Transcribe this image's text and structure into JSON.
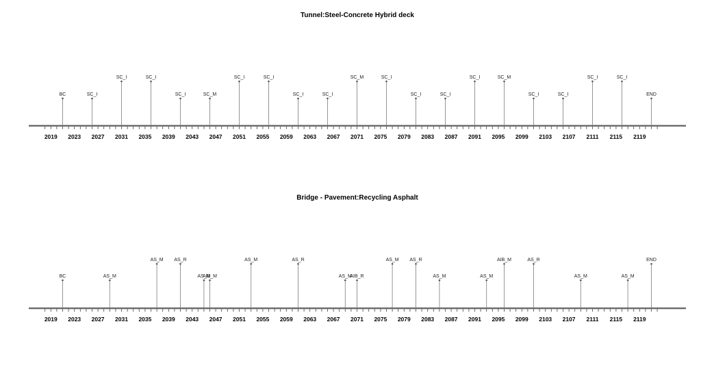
{
  "chart_data": [
    {
      "type": "timeline",
      "title": "Tunnel:Steel-Concrete Hybrid deck",
      "xlim": [
        2016,
        2122
      ],
      "tick_values": [
        2019,
        2023,
        2027,
        2031,
        2035,
        2039,
        2043,
        2047,
        2051,
        2055,
        2059,
        2063,
        2067,
        2071,
        2075,
        2079,
        2083,
        2087,
        2091,
        2095,
        2099,
        2103,
        2107,
        2111,
        2115,
        2119
      ],
      "events": [
        {
          "year": 2021,
          "label": "BC",
          "level": "low"
        },
        {
          "year": 2026,
          "label": "SC_I",
          "level": "low"
        },
        {
          "year": 2031,
          "label": "SC_I",
          "level": "high"
        },
        {
          "year": 2036,
          "label": "SC_I",
          "level": "high"
        },
        {
          "year": 2041,
          "label": "SC_I",
          "level": "low"
        },
        {
          "year": 2046,
          "label": "SC_M",
          "level": "low"
        },
        {
          "year": 2051,
          "label": "SC_I",
          "level": "high"
        },
        {
          "year": 2056,
          "label": "SC_I",
          "level": "high"
        },
        {
          "year": 2061,
          "label": "SC_I",
          "level": "low"
        },
        {
          "year": 2066,
          "label": "SC_I",
          "level": "low"
        },
        {
          "year": 2071,
          "label": "SC_M",
          "level": "high"
        },
        {
          "year": 2076,
          "label": "SC_I",
          "level": "high"
        },
        {
          "year": 2081,
          "label": "SC_I",
          "level": "low"
        },
        {
          "year": 2086,
          "label": "SC_I",
          "level": "low"
        },
        {
          "year": 2091,
          "label": "SC_I",
          "level": "high"
        },
        {
          "year": 2096,
          "label": "SC_M",
          "level": "high"
        },
        {
          "year": 2101,
          "label": "SC_I",
          "level": "low"
        },
        {
          "year": 2106,
          "label": "SC_I",
          "level": "low"
        },
        {
          "year": 2111,
          "label": "SC_I",
          "level": "high"
        },
        {
          "year": 2116,
          "label": "SC_I",
          "level": "high"
        },
        {
          "year": 2121,
          "label": "END",
          "level": "low"
        }
      ]
    },
    {
      "type": "timeline",
      "title": "Bridge - Pavement:Recycling Asphalt",
      "xlim": [
        2016,
        2122
      ],
      "tick_values": [
        2019,
        2023,
        2027,
        2031,
        2035,
        2039,
        2043,
        2047,
        2051,
        2055,
        2059,
        2063,
        2067,
        2071,
        2075,
        2079,
        2083,
        2087,
        2091,
        2095,
        2099,
        2103,
        2107,
        2111,
        2115,
        2119
      ],
      "events": [
        {
          "year": 2021,
          "label": "BC",
          "level": "low"
        },
        {
          "year": 2029,
          "label": "AS_M",
          "level": "low"
        },
        {
          "year": 2037,
          "label": "AS_M",
          "level": "high"
        },
        {
          "year": 2041,
          "label": "AS_R",
          "level": "high"
        },
        {
          "year": 2045,
          "label": "AS_M",
          "level": "low"
        },
        {
          "year": 2046,
          "label": "AIB_M",
          "level": "low"
        },
        {
          "year": 2053,
          "label": "AS_M",
          "level": "high"
        },
        {
          "year": 2061,
          "label": "AS_R",
          "level": "high"
        },
        {
          "year": 2069,
          "label": "AS_M",
          "level": "low"
        },
        {
          "year": 2071,
          "label": "AIB_R",
          "level": "low"
        },
        {
          "year": 2077,
          "label": "AS_M",
          "level": "high"
        },
        {
          "year": 2081,
          "label": "AS_R",
          "level": "high"
        },
        {
          "year": 2085,
          "label": "AS_M",
          "level": "low"
        },
        {
          "year": 2093,
          "label": "AS_M",
          "level": "low"
        },
        {
          "year": 2096,
          "label": "AIB_M",
          "level": "high"
        },
        {
          "year": 2101,
          "label": "AS_R",
          "level": "high"
        },
        {
          "year": 2109,
          "label": "AS_M",
          "level": "low"
        },
        {
          "year": 2117,
          "label": "AS_M",
          "level": "low"
        },
        {
          "year": 2121,
          "label": "END",
          "level": "high"
        }
      ]
    }
  ]
}
